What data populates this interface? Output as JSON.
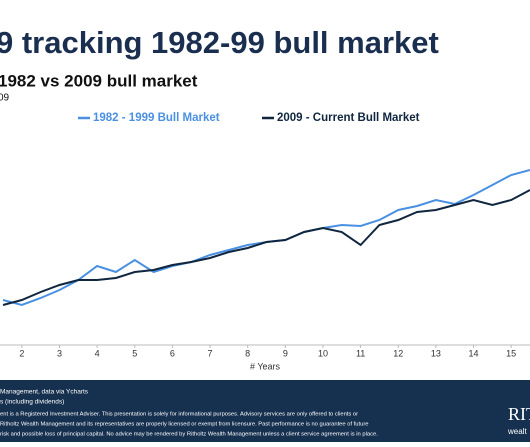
{
  "chart_data": {
    "type": "line",
    "title": "9 tracking 1982-99 bull market",
    "subtitle": "1982 vs 2009 bull market",
    "note": "09",
    "x_label": "# Years",
    "x": [
      1.5,
      2,
      2.5,
      3,
      3.5,
      4,
      4.5,
      5,
      5.5,
      6,
      6.5,
      7,
      7.5,
      8,
      8.5,
      9,
      9.5,
      10,
      10.5,
      11,
      11.5,
      12,
      12.5,
      13,
      13.5,
      14,
      14.5,
      15,
      15.5
    ],
    "series": [
      {
        "name": "1982 - 1999 Bull Market",
        "color": "#4a90e2",
        "values": [
          45,
          40,
          47,
          55,
          65,
          79,
          73,
          85,
          73,
          79,
          83,
          90,
          95,
          100,
          103,
          105,
          113,
          117,
          120,
          119,
          125,
          135,
          139,
          145,
          141,
          150,
          160,
          170,
          175
        ]
      },
      {
        "name": "2009 - Current Bull Market",
        "color": "#10263f",
        "values": [
          40,
          45,
          53,
          60,
          65,
          65,
          67,
          73,
          75,
          80,
          83,
          87,
          93,
          97,
          103,
          105,
          113,
          117,
          113,
          100,
          120,
          125,
          133,
          135,
          140,
          145,
          140,
          145,
          155
        ]
      }
    ],
    "xlim": [
      1.42,
      15.5
    ],
    "xticks": [
      2,
      3,
      4,
      5,
      6,
      7,
      8,
      9,
      10,
      11,
      12,
      13,
      14,
      15
    ],
    "ylim": [
      0,
      220
    ],
    "footer": {
      "source": "Management, data via Ycharts",
      "source_note": "s (including dividends)",
      "disclaimer": [
        "ent is a Registered Investment Adviser. This presentation is solely for informational purposes. Advisory services are only offered to clients or",
        "Ritholtz Wealth Management and its representatives are properly licensed or exempt from licensure. Past performance is no guarantee of future",
        "risk and possible loss of principal capital. No advice may be rendered by Ritholtz Wealth Management unless a client service agreement is in place."
      ],
      "logo_top": "RIT",
      "logo_bottom": "wealt"
    }
  }
}
